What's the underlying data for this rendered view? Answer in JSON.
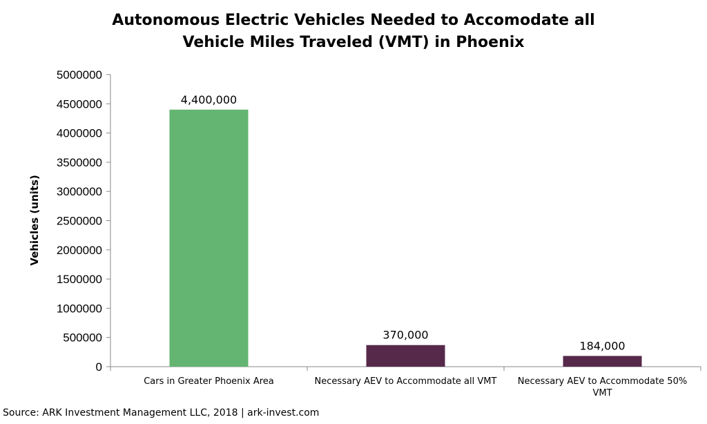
{
  "chart_data": {
    "type": "bar",
    "title_lines": [
      "Autonomous Electric Vehicles Needed to Accomodate all",
      "Vehicle Miles Traveled (VMT) in Phoenix"
    ],
    "ylabel": "Vehicles (units)",
    "xlabel": "",
    "ylim": [
      0,
      5000000
    ],
    "yticks": [
      "0",
      "500000",
      "1000000",
      "1500000",
      "2000000",
      "2500000",
      "3000000",
      "3500000",
      "4000000",
      "4500000",
      "5000000"
    ],
    "categories": [
      [
        "Cars in Greater Phoenix Area"
      ],
      [
        "Necessary AEV to Accommodate all VMT"
      ],
      [
        "Necessary AEV to Accommodate 50%",
        "VMT"
      ]
    ],
    "values": [
      4400000,
      370000,
      184000
    ],
    "data_labels": [
      "4,400,000",
      "370,000",
      "184,000"
    ],
    "colors": [
      "#63b571",
      "#56294b",
      "#56294b"
    ],
    "grid": false,
    "legend": "none"
  },
  "source": "Source: ARK Investment Management LLC, 2018 | ark-invest.com"
}
